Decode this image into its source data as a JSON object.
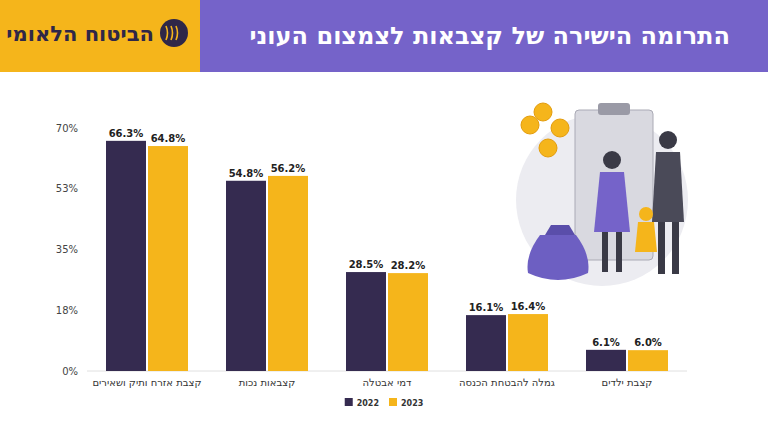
{
  "chart_data": {
    "type": "bar",
    "title": "התרומה הישירה של קצבאות לצמצום העוני",
    "logo": "הביטוח הלאומי",
    "categories": [
      "קצבת אזרח ותיק ושאירים",
      "קצבאות נכות",
      "דמי אבטלה",
      "גמלה להבטחת הכנסה",
      "קצבת ילדים"
    ],
    "series": [
      {
        "name": "2022",
        "color": "#352b50",
        "values": [
          66.3,
          54.8,
          28.5,
          16.1,
          6.1
        ],
        "value_labels": [
          "66.3%",
          "54.8%",
          "28.5%",
          "16.1%",
          "6.1%"
        ]
      },
      {
        "name": "2023",
        "color": "#f5b51b",
        "values": [
          64.8,
          56.2,
          28.2,
          16.4,
          6.0
        ],
        "value_labels": [
          "64.8%",
          "56.2%",
          "28.2%",
          "16.4%",
          "6.0%"
        ]
      }
    ],
    "ylim": [
      0,
      70
    ],
    "yticks": [
      {
        "value": 0,
        "label": "0%"
      },
      {
        "value": 17.5,
        "label": "18%"
      },
      {
        "value": 35,
        "label": "35%"
      },
      {
        "value": 52.5,
        "label": "53%"
      },
      {
        "value": 70,
        "label": "70%"
      }
    ],
    "grid": false,
    "legend": "bottom",
    "data_labels": true
  }
}
